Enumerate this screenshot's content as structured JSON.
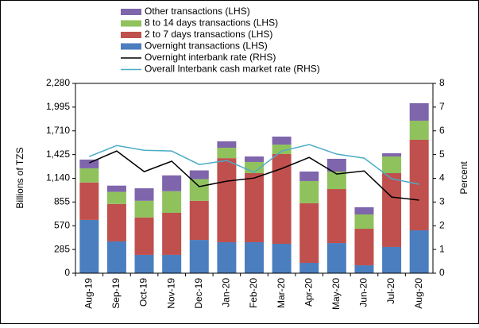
{
  "chart_data": {
    "type": "bar+line",
    "y_label": "Billions of TZS",
    "y2_label": "Percent",
    "categories": [
      "Aug-19",
      "Sep-19",
      "Oct-19",
      "Nov-19",
      "Dec-19",
      "Jan-20",
      "Feb-20",
      "Mar-20",
      "Apr-20",
      "May-20",
      "Jun-20",
      "Jul-20",
      "Aug-20"
    ],
    "series": [
      {
        "name": "Overnight  transactions (LHS)",
        "type": "bar",
        "color": "#4a7ebf",
        "values": [
          640,
          382,
          220,
          220,
          400,
          372,
          372,
          353,
          124,
          362,
          95,
          315,
          515
        ]
      },
      {
        "name": "2 to 7 days transactions (LHS)",
        "type": "bar",
        "color": "#c0504d",
        "values": [
          450,
          450,
          450,
          505,
          470,
          1010,
          830,
          1078,
          716,
          649,
          439,
          887,
          1088
        ]
      },
      {
        "name": "8 to 14 days transactions (LHS)",
        "type": "bar",
        "color": "#8fc25d",
        "values": [
          170,
          145,
          200,
          260,
          260,
          125,
          134,
          114,
          267,
          210,
          172,
          200,
          229
        ]
      },
      {
        "name": "Other transactions (LHS)",
        "type": "bar",
        "color": "#7f65ac",
        "values": [
          105,
          75,
          150,
          190,
          105,
          77,
          66,
          96,
          114,
          153,
          86,
          39,
          210
        ]
      },
      {
        "name": "Overnight interbank rate (RHS)",
        "type": "line",
        "axis": "y2",
        "color": "#000000",
        "values": [
          4.65,
          5.15,
          4.28,
          4.72,
          3.65,
          3.88,
          4.01,
          4.41,
          4.88,
          4.18,
          4.31,
          3.21,
          3.08
        ]
      },
      {
        "name": "Overall Interbank cash market rate (RHS)",
        "type": "line",
        "axis": "y2",
        "color": "#4bacc6",
        "values": [
          4.92,
          5.38,
          5.18,
          5.15,
          4.58,
          4.75,
          4.25,
          5.15,
          5.42,
          5.02,
          4.85,
          3.98,
          3.75
        ]
      }
    ],
    "ylim": [
      0,
      2280
    ],
    "yticks": [
      0,
      285,
      570,
      855,
      {
        "value": 1140,
        "label": "1,140"
      },
      {
        "value": 1425,
        "label": "1,425"
      },
      {
        "value": 1710,
        "label": "1,710"
      },
      {
        "value": 1995,
        "label": "1,995"
      },
      {
        "value": 2280,
        "label": "2,280"
      }
    ],
    "y2lim": [
      0,
      8
    ],
    "y2ticks": [
      0,
      1,
      2,
      3,
      4,
      5,
      6,
      7,
      8
    ]
  }
}
